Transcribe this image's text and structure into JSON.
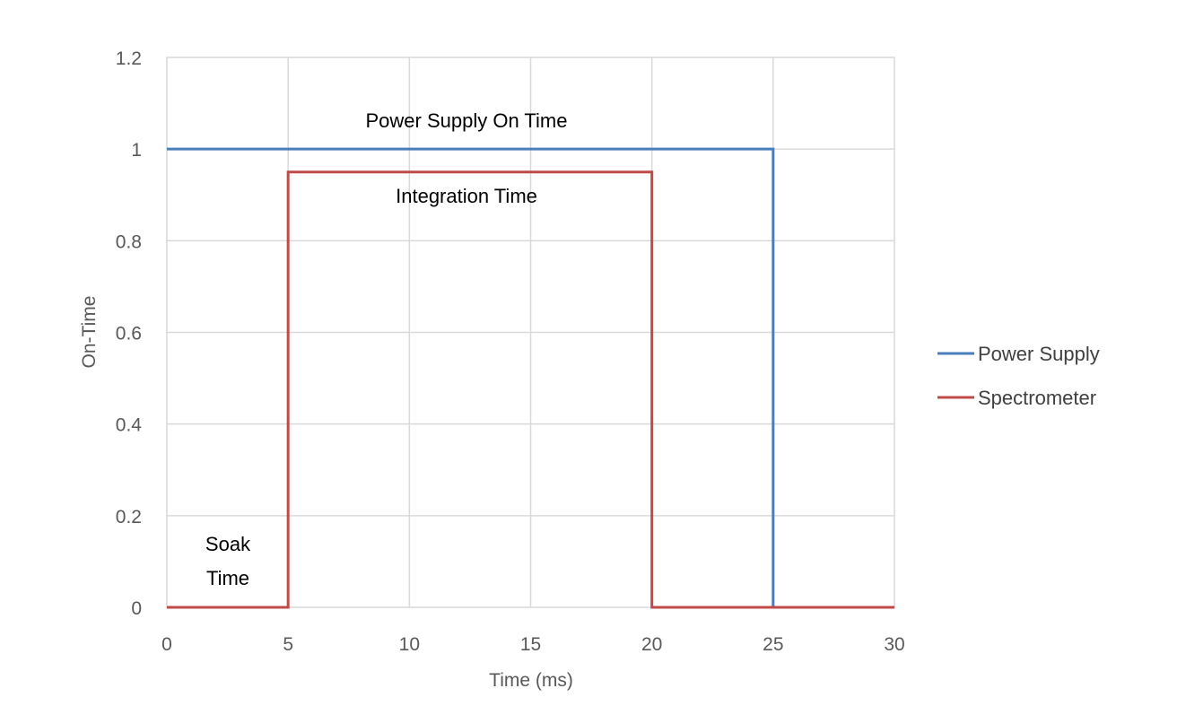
{
  "chart_data": {
    "type": "line",
    "title": "",
    "xlabel": "Time (ms)",
    "ylabel": "On-Time",
    "xlim": [
      0,
      30
    ],
    "ylim": [
      0,
      1.2
    ],
    "x_ticks": [
      "0",
      "5",
      "10",
      "15",
      "20",
      "25",
      "30"
    ],
    "y_ticks": [
      "0",
      "0.2",
      "0.4",
      "0.6",
      "0.8",
      "1",
      "1.2"
    ],
    "grid": true,
    "legend_position": "right",
    "series": [
      {
        "name": "Power Supply",
        "color": "#4a7ebb",
        "x": [
          0,
          25,
          25,
          30
        ],
        "y": [
          1,
          1,
          0,
          0
        ]
      },
      {
        "name": "Spectrometer",
        "color": "#be4b48",
        "x": [
          0,
          5,
          5,
          20,
          20,
          30
        ],
        "y": [
          0,
          0,
          0.95,
          0.95,
          0,
          0
        ]
      }
    ],
    "annotations": {
      "power_on": "Power Supply On Time",
      "integration": "Integration Time",
      "soak_line1": "Soak",
      "soak_line2": "Time"
    }
  }
}
